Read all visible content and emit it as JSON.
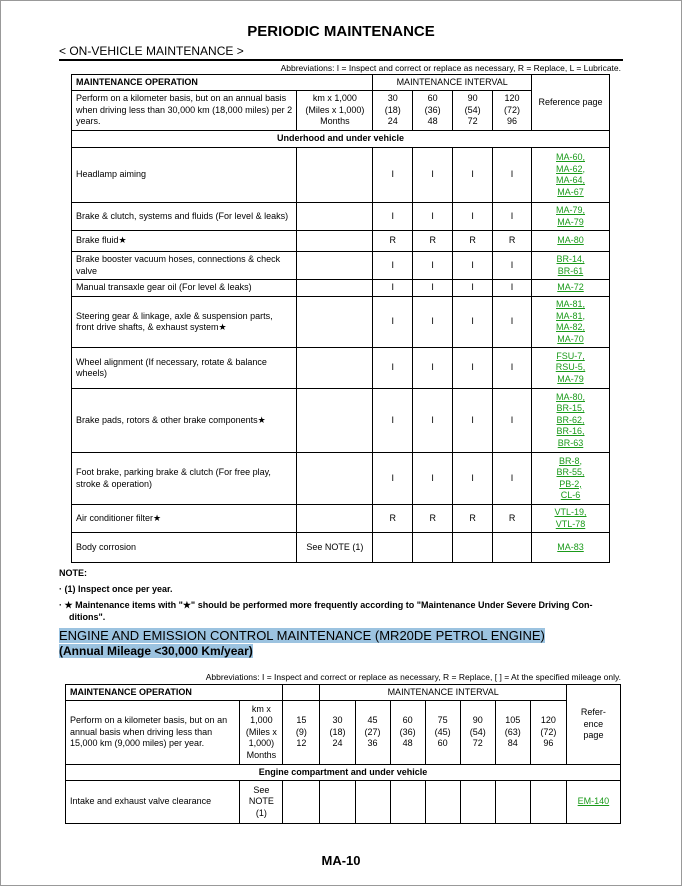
{
  "title": "PERIODIC MAINTENANCE",
  "subtitle": "< ON-VEHICLE MAINTENANCE >",
  "table1": {
    "abbreviations": "Abbreviations: I = Inspect and correct or replace as necessary,    R = Replace,    L = Lubricate.",
    "op_header": "MAINTENANCE OPERATION",
    "interval_header": "MAINTENANCE INTERVAL",
    "basis_text": "Perform on a kilometer basis, but on an annual basis when driving less than 30,000 km (18,000 miles) per 2 years.",
    "units": [
      "km x 1,000",
      "(Miles x 1,000)",
      "Months"
    ],
    "intervals": [
      [
        "30",
        "(18)",
        "24"
      ],
      [
        "60",
        "(36)",
        "48"
      ],
      [
        "90",
        "(54)",
        "72"
      ],
      [
        "120",
        "(72)",
        "96"
      ]
    ],
    "ref_header": "Reference page",
    "section": "Underhood and under vehicle",
    "rows": [
      {
        "op": "Headlamp aiming",
        "unit": "",
        "vals": [
          "I",
          "I",
          "I",
          "I"
        ],
        "refs": [
          "MA-60,",
          "MA-62,",
          "MA-64,",
          "MA-67"
        ]
      },
      {
        "op": "Brake & clutch, systems and fluids (For level & leaks)",
        "unit": "",
        "vals": [
          "I",
          "I",
          "I",
          "I"
        ],
        "refs": [
          "MA-79,",
          "MA-79"
        ]
      },
      {
        "op": "Brake fluid★",
        "unit": "",
        "vals": [
          "R",
          "R",
          "R",
          "R"
        ],
        "refs": [
          "MA-80"
        ]
      },
      {
        "op": "Brake booster vacuum hoses, connections & check valve",
        "unit": "",
        "vals": [
          "I",
          "I",
          "I",
          "I"
        ],
        "refs": [
          "BR-14,",
          "BR-61"
        ]
      },
      {
        "op": "Manual transaxle gear oil (For level & leaks)",
        "unit": "",
        "vals": [
          "I",
          "I",
          "I",
          "I"
        ],
        "refs": [
          "MA-72"
        ]
      },
      {
        "op": "Steering gear & linkage, axle & suspension parts, front drive shafts, & exhaust system★",
        "unit": "",
        "vals": [
          "I",
          "I",
          "I",
          "I"
        ],
        "refs": [
          "MA-81,",
          "MA-81,",
          "MA-82,",
          "MA-70"
        ]
      },
      {
        "op": "Wheel alignment (If necessary, rotate & balance wheels)",
        "unit": "",
        "vals": [
          "I",
          "I",
          "I",
          "I"
        ],
        "refs": [
          "FSU-7,",
          "RSU-5,",
          "MA-79"
        ]
      },
      {
        "op": "Brake pads, rotors & other brake components★",
        "unit": "",
        "vals": [
          "I",
          "I",
          "I",
          "I"
        ],
        "refs": [
          "MA-80,",
          "BR-15,",
          "BR-62,",
          "BR-16,",
          "BR-63"
        ]
      },
      {
        "op": "Foot brake, parking brake & clutch (For free play, stroke & operation)",
        "unit": "",
        "vals": [
          "I",
          "I",
          "I",
          "I"
        ],
        "refs": [
          "BR-8,",
          "BR-55,",
          "PB-2,",
          "CL-6"
        ]
      },
      {
        "op": "Air conditioner filter★",
        "unit": "",
        "vals": [
          "R",
          "R",
          "R",
          "R"
        ],
        "refs": [
          "VTL-19,",
          "VTL-78"
        ]
      },
      {
        "op": "Body corrosion",
        "unit": "See NOTE (1)",
        "vals": [
          "",
          "",
          "",
          ""
        ],
        "refs": [
          "MA-83"
        ]
      }
    ]
  },
  "notes": {
    "heading": "NOTE:",
    "items": [
      "·  (1) Inspect once per year.",
      "·  ★ Maintenance items with \"★\" should be performed more frequently according to \"Maintenance Under Severe Driving Con-",
      "ditions\"."
    ]
  },
  "section2": {
    "title": "ENGINE AND EMISSION CONTROL MAINTENANCE (MR20DE PETROL ENGINE)",
    "subtitle": "(Annual Mileage <30,000 Km/year)"
  },
  "table2": {
    "abbreviations": "Abbreviations: I = Inspect and correct or replace as necessary,    R = Replace,    [  ] = At the specified mileage only.",
    "op_header": "MAINTENANCE OPERATION",
    "interval_header": "MAINTENANCE INTERVAL",
    "basis_text": "Perform on a kilometer basis, but on an annual basis when driving less than 15,000 km (9,000 miles) per year.",
    "units": [
      "km x",
      "1,000",
      "(Miles x",
      "1,000)",
      "Months"
    ],
    "intervals": [
      [
        "15",
        "(9)",
        "12"
      ],
      [
        "30",
        "(18)",
        "24"
      ],
      [
        "45",
        "(27)",
        "36"
      ],
      [
        "60",
        "(36)",
        "48"
      ],
      [
        "75",
        "(45)",
        "60"
      ],
      [
        "90",
        "(54)",
        "72"
      ],
      [
        "105",
        "(63)",
        "84"
      ],
      [
        "120",
        "(72)",
        "96"
      ]
    ],
    "ref_header": [
      "Refer-",
      "ence",
      "page"
    ],
    "section": "Engine compartment and under vehicle",
    "rows": [
      {
        "op": "Intake and exhaust valve clearance",
        "unit": [
          "See",
          "NOTE",
          "(1)"
        ],
        "refs": [
          "EM-140"
        ]
      }
    ]
  },
  "page_number": "MA-10",
  "colors": {
    "link": "#1a9a1a",
    "highlight": "#9cc3e0"
  }
}
